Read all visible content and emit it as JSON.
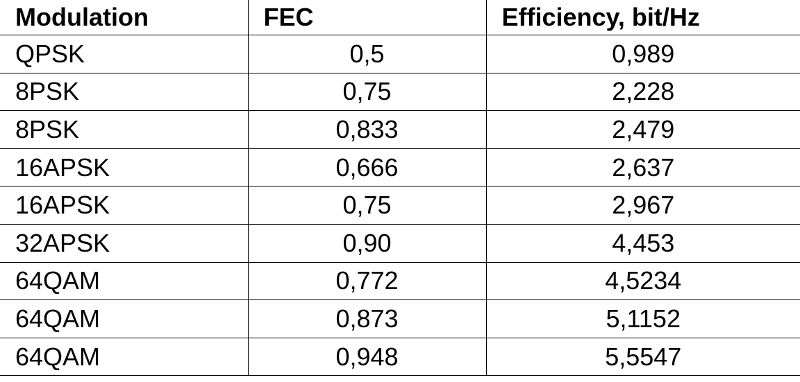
{
  "table": {
    "header": [
      "Modulation",
      "FEC",
      "Efficiency, bit/Hz"
    ],
    "rows": [
      [
        "QPSK",
        "0,5",
        "0,989"
      ],
      [
        "8PSK",
        "0,75",
        "2,228"
      ],
      [
        "8PSK",
        "0,833",
        "2,479"
      ],
      [
        "16APSK",
        "0,666",
        "2,637"
      ],
      [
        "16APSK",
        "0,75",
        "2,967"
      ],
      [
        "32APSK",
        "0,90",
        "4,453"
      ],
      [
        "64QAM",
        "0,772",
        "4,5234"
      ],
      [
        "64QAM",
        "0,873",
        "5,1152"
      ],
      [
        "64QAM",
        "0,948",
        "5,5547"
      ]
    ]
  }
}
